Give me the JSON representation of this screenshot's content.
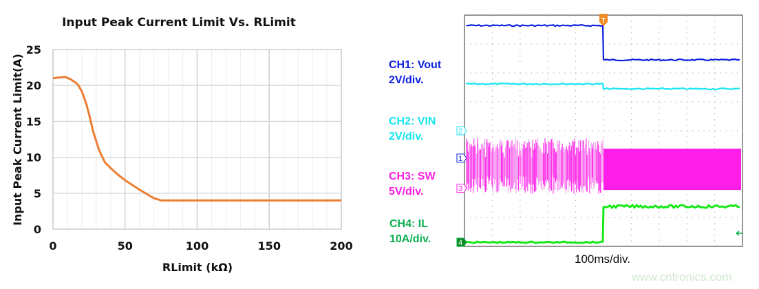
{
  "chart_data": [
    {
      "type": "line",
      "title": "Input Peak Current Limit Vs. RLimit",
      "xlabel": "RLimit (kΩ)",
      "ylabel": "Input Peak Current Limit(A)",
      "xlim": [
        0,
        200
      ],
      "ylim": [
        0,
        25
      ],
      "xticks": [
        "0",
        "50",
        "100",
        "150",
        "200"
      ],
      "yticks": [
        "0",
        "5",
        "10",
        "15",
        "20",
        "25"
      ],
      "grid": true,
      "color": "#ED7D31",
      "x": [
        0,
        4,
        8,
        12,
        17,
        20,
        23,
        25,
        28,
        32,
        36,
        40,
        45,
        50,
        60,
        70,
        75,
        100,
        150,
        200
      ],
      "y": [
        21,
        21.1,
        21.2,
        20.9,
        20.2,
        19.2,
        17.5,
        16,
        13.5,
        11,
        9.3,
        8.5,
        7.6,
        6.8,
        5.5,
        4.3,
        4,
        4,
        4,
        4
      ]
    },
    {
      "type": "line",
      "timebase": "100ms/div.",
      "divisions": {
        "x": 10,
        "y": 8
      },
      "trigger_marker": "T",
      "trigger_division": 5,
      "channels": [
        {
          "id": "1",
          "label": "CH1: Vout",
          "scale": "2V/div.",
          "color": "#0A1FE0",
          "marker_div": 4.95,
          "level_before_div": 0.36,
          "level_after_div": 1.55
        },
        {
          "id": "2",
          "label": "CH2: VIN",
          "scale": "2V/div.",
          "color": "#14E6F0",
          "marker_div": 4.0,
          "level_before_div": 2.38,
          "level_after_div": 2.55
        },
        {
          "id": "3",
          "label": "CH3: SW",
          "scale": "5V/div.",
          "color": "#FF1EE8",
          "marker_div": 5.99,
          "band_before_div": [
            4.24,
            6.19
          ],
          "band_after_div": [
            4.62,
            6.05
          ]
        },
        {
          "id": "4",
          "label": "CH4: IL",
          "scale": "10A/div.",
          "color": "#18E818",
          "label_color": "#0BAF50",
          "marker_div": 7.86,
          "level_before_div": 7.86,
          "level_after_div": 6.62
        }
      ]
    }
  ],
  "watermark": "www.cntronics.com"
}
